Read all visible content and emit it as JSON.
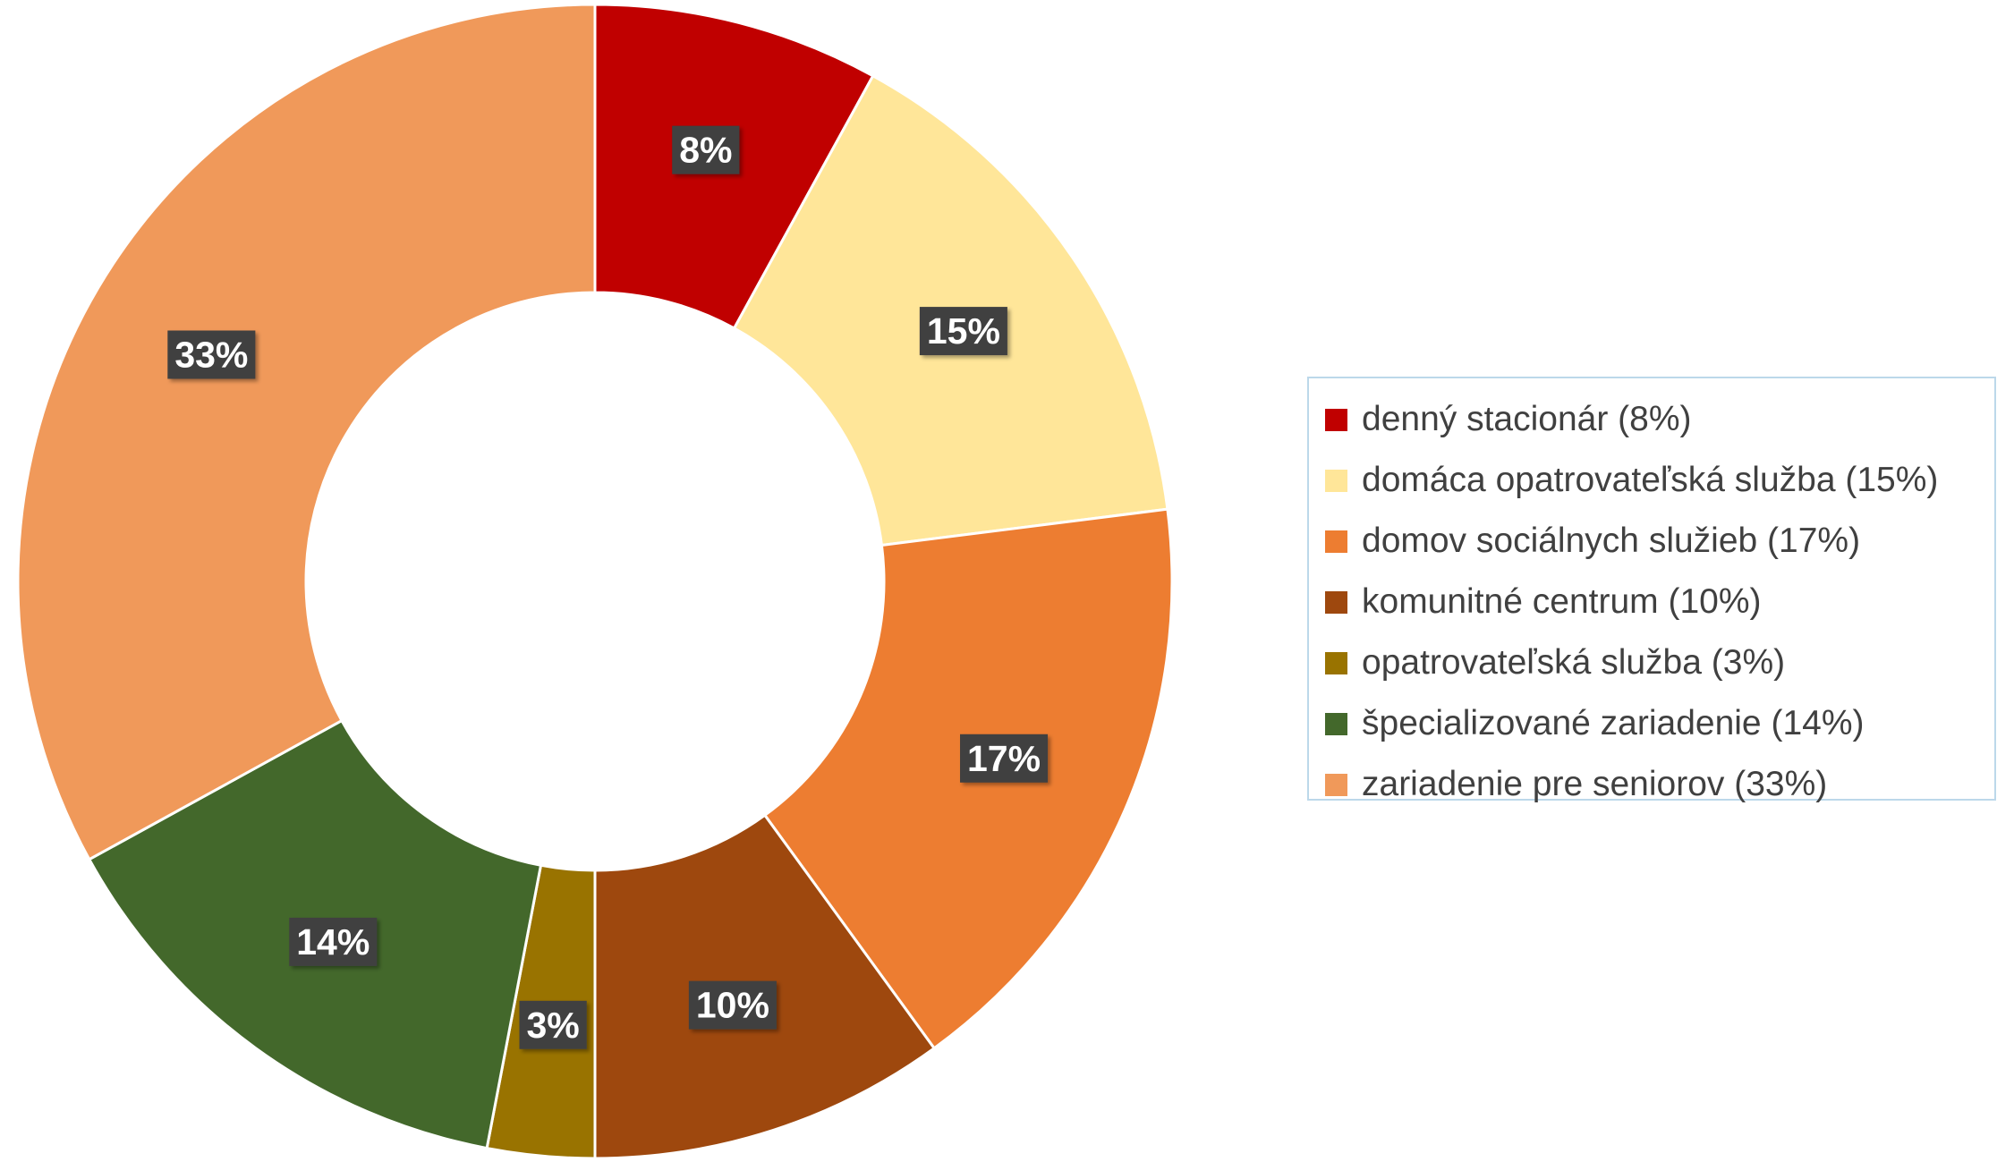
{
  "chart_data": {
    "type": "pie",
    "subtype": "donut",
    "series": [
      {
        "label": "8%",
        "legend": "denný stacionár (8%)",
        "value": 8,
        "color": "#c00000"
      },
      {
        "label": "15%",
        "legend": "domáca opatrovateľská služba (15%)",
        "value": 15,
        "color": "#ffe699"
      },
      {
        "label": "17%",
        "legend": "domov sociálnych služieb (17%)",
        "value": 17,
        "color": "#ed7d31"
      },
      {
        "label": "10%",
        "legend": "komunitné centrum (10%)",
        "value": 10,
        "color": "#9e480e"
      },
      {
        "label": "3%",
        "legend": "opatrovateľská služba (3%)",
        "value": 3,
        "color": "#997300"
      },
      {
        "label": "14%",
        "legend": "špecializované zariadenie (14%)",
        "value": 14,
        "color": "#43682b"
      },
      {
        "label": "33%",
        "legend": "zariadenie pre seniorov (33%)",
        "value": 33,
        "color": "#f0995a"
      }
    ],
    "legend_position": "right",
    "data_label_background": "#404040"
  }
}
